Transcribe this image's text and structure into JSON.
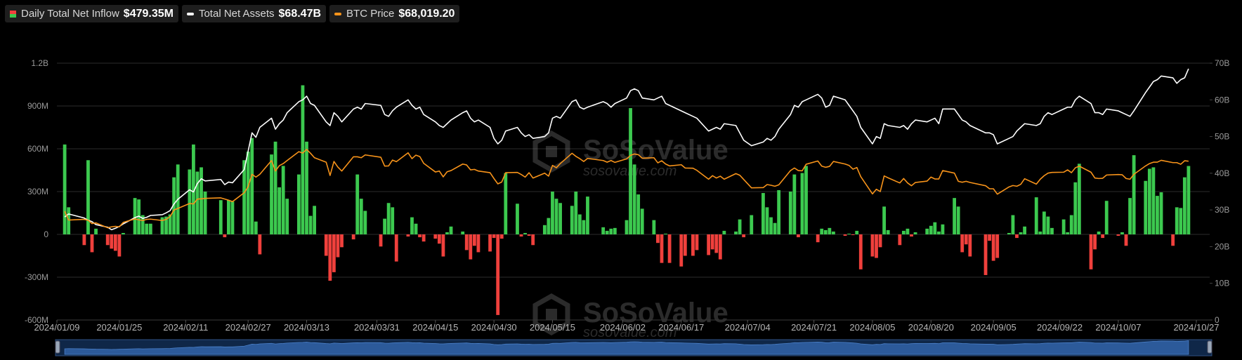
{
  "chart_data": {
    "type": "combo",
    "x": [
      "2024/01/11",
      "2024/01/12",
      "2024/01/16",
      "2024/01/17",
      "2024/01/18",
      "2024/01/19",
      "2024/01/22",
      "2024/01/23",
      "2024/01/24",
      "2024/01/25",
      "2024/01/26",
      "2024/01/29",
      "2024/01/30",
      "2024/01/31",
      "2024/02/01",
      "2024/02/02",
      "2024/02/05",
      "2024/02/06",
      "2024/02/07",
      "2024/02/08",
      "2024/02/09",
      "2024/02/12",
      "2024/02/13",
      "2024/02/14",
      "2024/02/15",
      "2024/02/16",
      "2024/02/20",
      "2024/02/21",
      "2024/02/22",
      "2024/02/23",
      "2024/02/26",
      "2024/02/27",
      "2024/02/28",
      "2024/02/29",
      "2024/03/01",
      "2024/03/04",
      "2024/03/05",
      "2024/03/06",
      "2024/03/07",
      "2024/03/08",
      "2024/03/11",
      "2024/03/12",
      "2024/03/13",
      "2024/03/14",
      "2024/03/15",
      "2024/03/18",
      "2024/03/19",
      "2024/03/20",
      "2024/03/21",
      "2024/03/22",
      "2024/03/25",
      "2024/03/26",
      "2024/03/27",
      "2024/03/28",
      "2024/04/01",
      "2024/04/02",
      "2024/04/03",
      "2024/04/04",
      "2024/04/05",
      "2024/04/08",
      "2024/04/09",
      "2024/04/10",
      "2024/04/11",
      "2024/04/12",
      "2024/04/15",
      "2024/04/16",
      "2024/04/17",
      "2024/04/18",
      "2024/04/19",
      "2024/04/22",
      "2024/04/23",
      "2024/04/24",
      "2024/04/25",
      "2024/04/26",
      "2024/04/29",
      "2024/04/30",
      "2024/05/01",
      "2024/05/02",
      "2024/05/03",
      "2024/05/06",
      "2024/05/07",
      "2024/05/08",
      "2024/05/09",
      "2024/05/10",
      "2024/05/13",
      "2024/05/14",
      "2024/05/15",
      "2024/05/16",
      "2024/05/17",
      "2024/05/20",
      "2024/05/21",
      "2024/05/22",
      "2024/05/23",
      "2024/05/24",
      "2024/05/28",
      "2024/05/29",
      "2024/05/30",
      "2024/05/31",
      "2024/06/03",
      "2024/06/04",
      "2024/06/05",
      "2024/06/06",
      "2024/06/07",
      "2024/06/10",
      "2024/06/11",
      "2024/06/12",
      "2024/06/13",
      "2024/06/14",
      "2024/06/17",
      "2024/06/18",
      "2024/06/20",
      "2024/06/21",
      "2024/06/24",
      "2024/06/25",
      "2024/06/26",
      "2024/06/27",
      "2024/06/28",
      "2024/07/01",
      "2024/07/02",
      "2024/07/03",
      "2024/07/05",
      "2024/07/08",
      "2024/07/09",
      "2024/07/10",
      "2024/07/11",
      "2024/07/12",
      "2024/07/15",
      "2024/07/16",
      "2024/07/17",
      "2024/07/18",
      "2024/07/19",
      "2024/07/22",
      "2024/07/23",
      "2024/07/24",
      "2024/07/25",
      "2024/07/26",
      "2024/07/29",
      "2024/07/30",
      "2024/07/31",
      "2024/08/01",
      "2024/08/02",
      "2024/08/05",
      "2024/08/06",
      "2024/08/07",
      "2024/08/08",
      "2024/08/09",
      "2024/08/12",
      "2024/08/13",
      "2024/08/14",
      "2024/08/15",
      "2024/08/16",
      "2024/08/19",
      "2024/08/20",
      "2024/08/21",
      "2024/08/22",
      "2024/08/23",
      "2024/08/26",
      "2024/08/27",
      "2024/08/28",
      "2024/08/29",
      "2024/08/30",
      "2024/09/03",
      "2024/09/04",
      "2024/09/05",
      "2024/09/06",
      "2024/09/09",
      "2024/09/10",
      "2024/09/11",
      "2024/09/12",
      "2024/09/13",
      "2024/09/16",
      "2024/09/17",
      "2024/09/18",
      "2024/09/19",
      "2024/09/20",
      "2024/09/23",
      "2024/09/24",
      "2024/09/25",
      "2024/09/26",
      "2024/09/27",
      "2024/09/30",
      "2024/10/01",
      "2024/10/02",
      "2024/10/03",
      "2024/10/04",
      "2024/10/07",
      "2024/10/08",
      "2024/10/09",
      "2024/10/10",
      "2024/10/11",
      "2024/10/14",
      "2024/10/15",
      "2024/10/16",
      "2024/10/17",
      "2024/10/18",
      "2024/10/21",
      "2024/10/22",
      "2024/10/23",
      "2024/10/24",
      "2024/10/25"
    ],
    "series": [
      {
        "name": "Daily Total Net Inflow",
        "type": "bar",
        "color": "#3cc94f",
        "negative_color": "#f0403c",
        "current_label": "$479.35M",
        "values": [
          630,
          190,
          -75,
          520,
          -125,
          40,
          -75,
          -100,
          -115,
          -155,
          10,
          255,
          245,
          135,
          75,
          75,
          120,
          125,
          140,
          400,
          490,
          455,
          630,
          440,
          470,
          300,
          240,
          -20,
          240,
          230,
          520,
          580,
          675,
          90,
          -140,
          560,
          650,
          330,
          480,
          250,
          420,
          1045,
          650,
          130,
          200,
          -150,
          -325,
          -265,
          -160,
          -90,
          -35,
          420,
          250,
          165,
          -85,
          110,
          220,
          190,
          -190,
          -15,
          120,
          75,
          -20,
          -50,
          -30,
          -65,
          -155,
          15,
          55,
          20,
          -110,
          -175,
          -80,
          -125,
          -120,
          -25,
          -565,
          -30,
          430,
          215,
          -15,
          10,
          -10,
          -75,
          65,
          115,
          300,
          250,
          220,
          200,
          300,
          140,
          100,
          265,
          50,
          25,
          40,
          45,
          100,
          885,
          490,
          280,
          180,
          100,
          -60,
          -200,
          5,
          -200,
          -225,
          -150,
          -150,
          -110,
          -145,
          -105,
          -130,
          -175,
          25,
          20,
          105,
          -20,
          135,
          290,
          190,
          120,
          80,
          310,
          300,
          420,
          -20,
          430,
          480,
          -55,
          40,
          30,
          45,
          20,
          -10,
          5,
          -5,
          25,
          -245,
          -155,
          -165,
          -90,
          195,
          30,
          -75,
          25,
          40,
          -15,
          15,
          40,
          60,
          85,
          20,
          70,
          255,
          195,
          -125,
          -70,
          -155,
          -285,
          -45,
          -185,
          -165,
          10,
          135,
          -25,
          15,
          55,
          260,
          20,
          160,
          125,
          45,
          105,
          15,
          135,
          365,
          495,
          -245,
          -105,
          20,
          -25,
          235,
          -10,
          15,
          -80,
          255,
          555,
          375,
          460,
          470,
          270,
          295,
          -80,
          190,
          185,
          400,
          479.35
        ]
      },
      {
        "name": "Total Net Assets",
        "type": "line",
        "color": "#ffffff",
        "axis": "y2",
        "current_label": "$68.47B",
        "values": [
          28.1,
          28.9,
          27.8,
          27.2,
          26.8,
          26.0,
          25.3,
          24.6,
          25.0,
          25.5,
          26.2,
          27.9,
          28.3,
          27.7,
          28.0,
          28.5,
          28.7,
          29.2,
          29.8,
          31.6,
          32.9,
          35.5,
          34.9,
          37.2,
          38.5,
          37.9,
          38.3,
          36.9,
          37.6,
          37.4,
          41.0,
          46.0,
          51.0,
          49.8,
          52.5,
          55.0,
          52.0,
          53.5,
          54.5,
          56.5,
          59.5,
          60.0,
          61.0,
          59.0,
          58.5,
          54.0,
          53.0,
          56.5,
          55.5,
          54.0,
          57.5,
          58.0,
          57.5,
          59.0,
          58.5,
          56.0,
          55.5,
          57.0,
          58.0,
          60.0,
          58.5,
          57.5,
          58.0,
          56.0,
          54.0,
          53.0,
          52.5,
          53.5,
          54.5,
          56.5,
          57.0,
          55.0,
          54.0,
          54.5,
          52.5,
          49.5,
          48.0,
          49.0,
          51.5,
          52.5,
          51.0,
          50.0,
          50.5,
          49.5,
          50.0,
          51.0,
          55.0,
          55.5,
          55.0,
          59.5,
          60.0,
          58.0,
          57.5,
          58.0,
          59.5,
          59.0,
          58.0,
          59.0,
          60.5,
          62.5,
          63.0,
          62.5,
          60.5,
          60.0,
          60.5,
          61.0,
          59.0,
          58.5,
          57.0,
          56.5,
          55.5,
          55.0,
          51.5,
          52.0,
          52.5,
          52.0,
          53.5,
          53.0,
          51.0,
          49.0,
          47.5,
          48.5,
          49.5,
          49.0,
          50.0,
          52.0,
          56.0,
          58.5,
          58.0,
          59.5,
          60.0,
          61.5,
          60.5,
          58.0,
          58.5,
          61.0,
          60.0,
          58.5,
          57.0,
          55.5,
          52.5,
          48.0,
          50.0,
          49.5,
          53.5,
          53.0,
          52.5,
          53.0,
          52.0,
          53.5,
          54.5,
          54.0,
          54.5,
          55.0,
          53.5,
          57.5,
          57.5,
          56.0,
          54.5,
          54.0,
          53.0,
          51.0,
          51.0,
          50.5,
          48.0,
          49.5,
          50.0,
          51.5,
          52.5,
          53.5,
          53.0,
          53.5,
          55.5,
          56.5,
          56.0,
          57.5,
          58.0,
          58.0,
          60.0,
          61.0,
          59.0,
          56.5,
          56.5,
          56.0,
          57.5,
          57.0,
          56.5,
          56.0,
          55.5,
          57.0,
          62.0,
          63.5,
          65.0,
          65.5,
          66.5,
          66.0,
          64.5,
          65.5,
          66.0,
          68.47
        ]
      },
      {
        "name": "BTC Price",
        "type": "line",
        "color": "#f7931a",
        "axis": "y3",
        "current_label": "$68,019.20",
        "values": [
          46600,
          42800,
          43100,
          42700,
          41300,
          41600,
          39500,
          39900,
          40100,
          39900,
          41800,
          43300,
          42900,
          42600,
          43100,
          43200,
          42600,
          43100,
          44300,
          47100,
          47800,
          49900,
          49700,
          51800,
          51900,
          52100,
          52300,
          51800,
          51300,
          50700,
          54500,
          57100,
          62400,
          61200,
          62400,
          68300,
          63800,
          66100,
          67000,
          68300,
          72100,
          71500,
          73100,
          71400,
          69500,
          67600,
          61900,
          67900,
          65500,
          63800,
          69900,
          69900,
          69500,
          70700,
          69700,
          65900,
          66000,
          68500,
          67800,
          71600,
          69100,
          70600,
          70000,
          67100,
          63400,
          63800,
          61300,
          63500,
          64000,
          66800,
          66400,
          64300,
          64500,
          63800,
          63100,
          60600,
          58300,
          59100,
          63100,
          63200,
          62300,
          61200,
          63100,
          60800,
          62900,
          61600,
          66200,
          65200,
          67000,
          71400,
          70100,
          69100,
          67900,
          69200,
          68300,
          67600,
          68300,
          67500,
          69000,
          70500,
          71100,
          70800,
          69300,
          69500,
          67300,
          68200,
          66800,
          66000,
          66500,
          65100,
          65000,
          64100,
          60300,
          61800,
          60800,
          61600,
          60300,
          62700,
          62000,
          60200,
          56600,
          56700,
          58000,
          57700,
          57300,
          57900,
          64000,
          65100,
          64000,
          63900,
          66700,
          68100,
          65900,
          65400,
          65800,
          67900,
          66800,
          66200,
          64600,
          65300,
          61400,
          54000,
          56000,
          55000,
          61700,
          60900,
          58700,
          60600,
          58700,
          57500,
          58900,
          59500,
          61200,
          60400,
          60400,
          64000,
          62900,
          59400,
          59000,
          59400,
          58900,
          57500,
          56200,
          56200,
          53900,
          57000,
          57600,
          57300,
          58100,
          60500,
          58200,
          60300,
          61800,
          62900,
          63200,
          63300,
          64300,
          63100,
          65200,
          65900,
          63300,
          60800,
          60600,
          60700,
          62100,
          62300,
          62200,
          60600,
          60300,
          62400,
          66000,
          67000,
          67600,
          67600,
          68400,
          67400,
          67400,
          66700,
          68200,
          68019.2
        ]
      }
    ],
    "xlim": [
      "2024/01/09",
      "2024/10/27"
    ],
    "xticks": [
      "2024/01/09",
      "2024/01/25",
      "2024/02/11",
      "2024/02/27",
      "2024/03/13",
      "2024/03/31",
      "2024/04/15",
      "2024/04/30",
      "2024/05/15",
      "2024/06/02",
      "2024/06/17",
      "2024/07/04",
      "2024/07/21",
      "2024/08/05",
      "2024/08/20",
      "2024/09/05",
      "2024/09/22",
      "2024/10/07",
      "2024/10/27"
    ],
    "ylim": [
      -600,
      1200
    ],
    "yticks": [
      {
        "value": -600,
        "label": "-600M"
      },
      {
        "value": -300,
        "label": "-300M"
      },
      0,
      {
        "value": 300,
        "label": "300M"
      },
      {
        "value": 600,
        "label": "600M"
      },
      {
        "value": 900,
        "label": "900M"
      },
      {
        "value": 1200,
        "label": "1.2B"
      }
    ],
    "y2lim": [
      0,
      70
    ],
    "y2ticks": [
      0,
      {
        "value": 10,
        "label": "10B"
      },
      {
        "value": 20,
        "label": "20B"
      },
      {
        "value": 30,
        "label": "30B"
      },
      {
        "value": 40,
        "label": "40B"
      },
      {
        "value": 50,
        "label": "50B"
      },
      {
        "value": 60,
        "label": "60B"
      },
      {
        "value": 70,
        "label": "70B"
      }
    ],
    "y3lim": [
      0,
      110000
    ],
    "grid": true,
    "watermark": {
      "brand": "SoSoValue",
      "site": "sosovalue.com"
    }
  }
}
